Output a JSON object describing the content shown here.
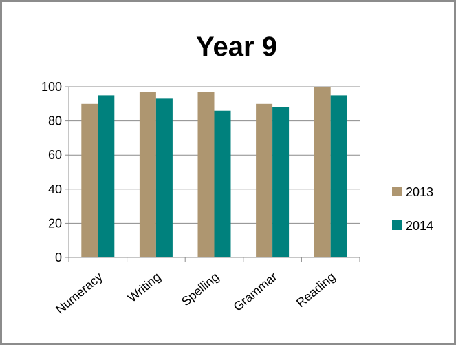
{
  "chart_data": {
    "type": "bar",
    "title": "Year 9",
    "categories": [
      "Numeracy",
      "Writing",
      "Spelling",
      "Grammar",
      "Reading"
    ],
    "series": [
      {
        "name": "2013",
        "values": [
          90,
          97,
          97,
          90,
          100
        ],
        "color": "#ae9670"
      },
      {
        "name": "2014",
        "values": [
          95,
          93,
          86,
          88,
          95
        ],
        "color": "#00817d"
      }
    ],
    "y_ticks": [
      "0",
      "20",
      "40",
      "60",
      "80",
      "100"
    ],
    "ylim": [
      0,
      100
    ],
    "grid": true,
    "legend_position": "right",
    "xlabel": "",
    "ylabel": ""
  }
}
